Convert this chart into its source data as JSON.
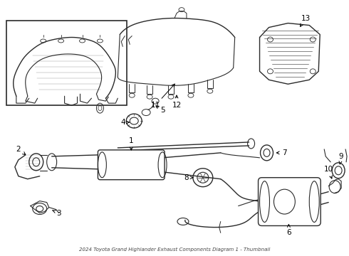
{
  "title": "2024 Toyota Grand Highlander Exhaust Components Diagram 1 - Thumbnail",
  "background_color": "#ffffff",
  "line_color": "#2a2a2a",
  "text_color": "#000000",
  "fig_width": 4.9,
  "fig_height": 3.6,
  "dpi": 100,
  "label_fontsize": 7.5,
  "title_fontsize": 5.0
}
